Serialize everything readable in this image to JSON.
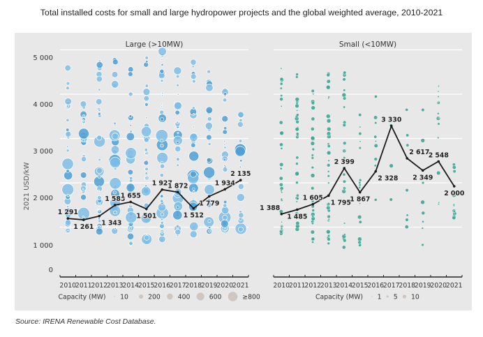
{
  "title": "Total installed costs for small and large hydropower projects and the global weighted average, 2010-2021",
  "source": "Source: IRENA Renewable Cost Database.",
  "colors": {
    "panel_bg": "#e8e8e8",
    "large_dots": "#7fbde6",
    "large_dots_dark": "#4f9fd6",
    "small_dots": "#3fa593",
    "average_line": "#1a1a1a",
    "legend_dot": "#cfc6bf"
  },
  "chart_data": [
    {
      "type": "scatter",
      "title": "Large (>10MW)",
      "xlabel": "",
      "ylabel": "2021 USD/kW",
      "ylim": [
        0,
        5000
      ],
      "yticks": [
        0,
        1000,
        2000,
        3000,
        4000,
        5000
      ],
      "ytick_labels": [
        "0",
        "1 000",
        "2 000",
        "3 000",
        "4 000",
        "5 000"
      ],
      "categories": [
        "2010",
        "2011",
        "2012",
        "2013",
        "2014",
        "2015",
        "2016",
        "2017",
        "2018",
        "2019",
        "2020",
        "2021"
      ],
      "grid": true,
      "series": [
        {
          "name": "Global weighted average",
          "type": "line",
          "values": [
            1291,
            1261,
            1343,
            1585,
            1655,
            1501,
            1927,
            1872,
            1512,
            1779,
            1934,
            2135
          ],
          "labels": [
            "1 291",
            "1 261",
            "1 343",
            "1 585",
            "1 655",
            "1 501",
            "1 927",
            "1 872",
            "1 512",
            "1 779",
            "1 934",
            "2 135"
          ],
          "label_pos": [
            "above",
            "below",
            "below-right",
            "above",
            "above",
            "below",
            "above",
            "above",
            "below",
            "below",
            "above",
            "above"
          ]
        },
        {
          "name": "Projects",
          "type": "bubble",
          "range_min": [
            1000,
            800,
            1000,
            950,
            700,
            800,
            800,
            900,
            900,
            1000,
            1050,
            1050
          ],
          "range_max": [
            4750,
            3850,
            4800,
            4800,
            4950,
            5200,
            5000,
            4650,
            4900,
            4600,
            4650,
            3600
          ],
          "density": [
            34,
            30,
            36,
            34,
            40,
            42,
            44,
            36,
            30,
            28,
            34,
            22
          ]
        }
      ],
      "legend": {
        "title": "Capacity (MW)",
        "position": "bottom",
        "items": [
          "10",
          "200",
          "400",
          "600",
          "≥800"
        ]
      }
    },
    {
      "type": "scatter",
      "title": "Small (<10MW)",
      "xlabel": "",
      "ylabel": "",
      "ylim": [
        0,
        5000
      ],
      "categories": [
        "2010",
        "2011",
        "2012",
        "2013",
        "2014",
        "2015",
        "2016",
        "2017",
        "2018",
        "2019",
        "2020",
        "2021"
      ],
      "grid": true,
      "series": [
        {
          "name": "Global weighted average",
          "type": "line",
          "values": [
            1388,
            1485,
            1605,
            1795,
            2399,
            1867,
            2328,
            3330,
            2617,
            2349,
            2548,
            2000
          ],
          "labels": [
            "1 388",
            "1 485",
            "1 605",
            "1 795",
            "2 399",
            "1 867",
            "2 328",
            "3 330",
            "2 617",
            "2 349",
            "2 548",
            "2 000"
          ],
          "label_pos": [
            "above-left",
            "below",
            "above",
            "below-right",
            "above",
            "below",
            "below-right",
            "above",
            "above-right",
            "below",
            "above",
            "below"
          ]
        },
        {
          "name": "Projects",
          "type": "bubble",
          "range_min": [
            950,
            900,
            700,
            600,
            600,
            700,
            900,
            1500,
            1100,
            700,
            1500,
            1300
          ],
          "range_max": [
            4600,
            4550,
            4600,
            4700,
            4700,
            4150,
            4000,
            4300,
            3900,
            4100,
            4450,
            2500
          ],
          "density": [
            36,
            36,
            32,
            40,
            26,
            18,
            10,
            3,
            8,
            8,
            14,
            12
          ]
        }
      ],
      "legend": {
        "title": "Capacity (MW)",
        "position": "bottom",
        "items": [
          "1",
          "5",
          "10"
        ]
      }
    }
  ]
}
